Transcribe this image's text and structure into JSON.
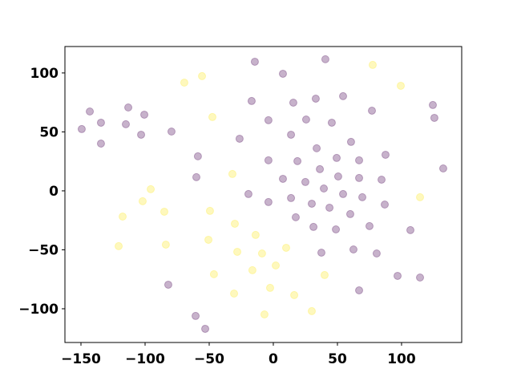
{
  "chart_data": {
    "type": "scatter",
    "xlim": [
      -162.5,
      146.9
    ],
    "ylim": [
      -128.6,
      122.4
    ],
    "xticks": [
      {
        "value": -150,
        "label": "−150"
      },
      {
        "value": -100,
        "label": "−100"
      },
      {
        "value": -50,
        "label": "−50"
      },
      0,
      50,
      100
    ],
    "yticks": [
      {
        "value": -100,
        "label": "−100"
      },
      {
        "value": -50,
        "label": "−50"
      },
      0,
      50,
      100
    ],
    "series": [
      {
        "color": "#440154",
        "x": [
          -14.4,
          40.6,
          7.5,
          -143.1,
          -149.4,
          -134.4,
          -134.4,
          -113.1,
          -100.6,
          -115,
          -103.1,
          -79.4,
          -16.9,
          15.6,
          33.1,
          54.4,
          76.9,
          124.4,
          125.6,
          -3.8,
          25.6,
          45.6,
          -26.3,
          13.8,
          60.6,
          -58.8,
          33.8,
          -3.8,
          18.8,
          49.4,
          66.9,
          87.5,
          132.5,
          -60,
          7.5,
          36.3,
          50.6,
          66.9,
          84.4,
          25,
          -19.4,
          39.4,
          -3.8,
          13.8,
          30,
          54.4,
          69.4,
          43.8,
          86.9,
          60,
          17.5,
          75,
          31.3,
          48.8,
          106.9,
          62.5,
          37.5,
          80.6,
          -81.9,
          96.9,
          114.4,
          66.9,
          -60.6,
          -53.1
        ],
        "y": [
          109.5,
          111.6,
          99.3,
          67.3,
          52.4,
          57.8,
          40.1,
          70.7,
          64.6,
          56.5,
          47.6,
          50.3,
          76.2,
          74.8,
          78.2,
          80.3,
          68,
          72.8,
          61.9,
          59.9,
          60.5,
          57.8,
          44.2,
          47.6,
          41.5,
          29.3,
          36.1,
          25.9,
          25.2,
          27.9,
          25.9,
          30.6,
          19,
          11.6,
          10.2,
          18.4,
          12.2,
          10.9,
          9.5,
          7.5,
          -2.7,
          2,
          -9.5,
          -6.1,
          -10.9,
          -2.7,
          -5.4,
          -14.3,
          -11.6,
          -19.7,
          -22.4,
          -29.9,
          -30.6,
          -32.7,
          -33.3,
          -49.7,
          -52.4,
          -53.1,
          -79.6,
          -72.1,
          -73.5,
          -84.4,
          -106.1,
          -117
        ]
      },
      {
        "color": "#fde725",
        "x": [
          77.5,
          -69.4,
          -55.6,
          99.4,
          -47.5,
          -31.9,
          -95.6,
          -101.9,
          -85,
          -49.4,
          -117.5,
          114.4,
          -30,
          -50.6,
          -13.8,
          -120.6,
          -83.8,
          -28.1,
          -8.8,
          10,
          1.9,
          -46.3,
          -16.3,
          40,
          -2.5,
          -30.6,
          16.3,
          -6.9,
          30
        ],
        "y": [
          106.8,
          91.8,
          97.3,
          89.1,
          62.6,
          14.3,
          1.4,
          -8.8,
          -17.7,
          -17,
          -21.8,
          -5.4,
          -27.9,
          -41.5,
          -37.4,
          -46.9,
          -45.6,
          -51.7,
          -53.1,
          -48.3,
          -63.3,
          -70.7,
          -67.3,
          -71.4,
          -82.3,
          -87.1,
          -88.4,
          -104.8,
          -102
        ]
      }
    ]
  }
}
